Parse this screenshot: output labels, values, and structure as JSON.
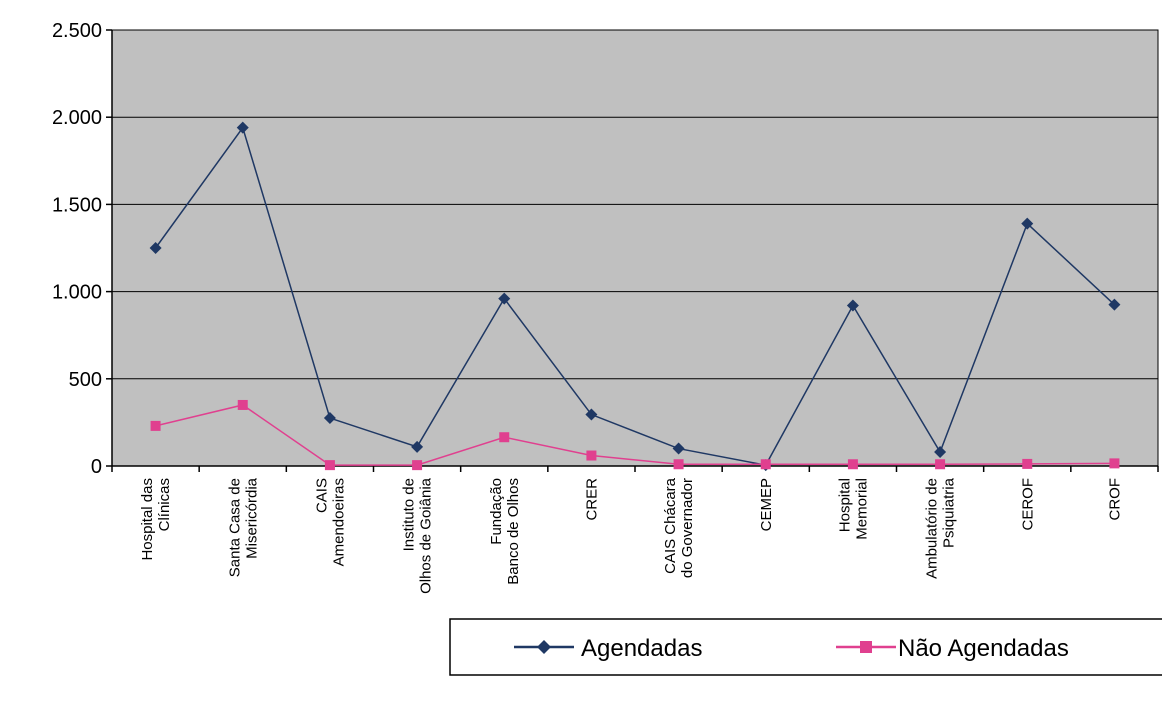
{
  "chart_data": {
    "type": "line",
    "title": "",
    "xlabel": "",
    "ylabel": "",
    "categories": [
      [
        "Hospital das",
        "Clínicas"
      ],
      [
        "Santa Casa de",
        "Misericórdia"
      ],
      [
        "CAIS",
        "Amendoeiras"
      ],
      [
        "Instituto de",
        "Olhos de Goiânia"
      ],
      [
        "Fundação",
        "Banco de Olhos"
      ],
      [
        "CRER"
      ],
      [
        "CAIS Chácara",
        "do Governador"
      ],
      [
        "CEMEP"
      ],
      [
        "Hospital",
        "Memorial"
      ],
      [
        "Ambulatório de",
        "Psiquiatria"
      ],
      [
        "CEROF"
      ],
      [
        "CROF"
      ]
    ],
    "series": [
      {
        "name": "Agendadas",
        "color": "#1f3864",
        "marker": "diamond",
        "values": [
          1250,
          1940,
          275,
          110,
          960,
          295,
          100,
          5,
          920,
          80,
          1390,
          925
        ]
      },
      {
        "name": "Não Agendadas",
        "color": "#e0408f",
        "marker": "square",
        "values": [
          230,
          350,
          5,
          5,
          165,
          60,
          10,
          10,
          10,
          10,
          12,
          15
        ]
      }
    ],
    "ylim": [
      0,
      2500
    ],
    "yticks": [
      0,
      500,
      1000,
      1500,
      2000,
      2500
    ],
    "ytick_labels": [
      "0",
      "500",
      "1.000",
      "1.500",
      "2.000",
      "2.500"
    ],
    "grid": true,
    "plot_background": "#c0c0c0",
    "legend_position": "bottom-right"
  }
}
